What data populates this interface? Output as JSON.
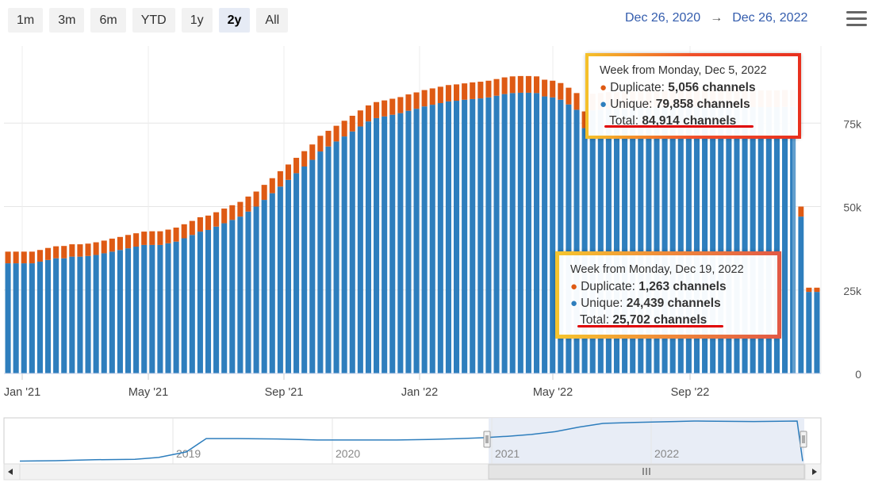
{
  "range_selector": {
    "buttons": [
      "1m",
      "3m",
      "6m",
      "YTD",
      "1y",
      "2y",
      "All"
    ],
    "selected": "2y"
  },
  "date_range": {
    "from": "Dec 26, 2020",
    "arrow": "→",
    "to": "Dec 26, 2022"
  },
  "menu_icon": "hamburger-menu-icon",
  "colors": {
    "unique": "#2e7ebd",
    "duplicate": "#de5a14",
    "navigator_line": "#2e7ebd",
    "navigator_fill": "#e6ebf5"
  },
  "tooltips": [
    {
      "title": "Week from Monday, Dec 5, 2022",
      "duplicate_label": "Duplicate: ",
      "duplicate_value": "5,056 channels",
      "unique_label": "Unique: ",
      "unique_value": "79,858 channels",
      "total_label": "Total: ",
      "total_value": "84,914 channels"
    },
    {
      "title": "Week from Monday, Dec 19, 2022",
      "duplicate_label": "Duplicate: ",
      "duplicate_value": "1,263 channels",
      "unique_label": "Unique: ",
      "unique_value": "24,439 channels",
      "total_label": "Total: ",
      "total_value": "25,702 channels"
    }
  ],
  "chart_data": {
    "type": "bar",
    "stacked": true,
    "x_start": "2020-12-28",
    "x_interval": "week",
    "x_ticks": [
      "Jan '21",
      "May '21",
      "Sep '21",
      "Jan '22",
      "May '22",
      "Sep '22"
    ],
    "y_ticks": [
      "0",
      "25k",
      "50k",
      "75k"
    ],
    "ylim": [
      0,
      100000
    ],
    "y_axis_position": "right",
    "series": [
      {
        "name": "Unique",
        "values": [
          33000,
          33000,
          33000,
          33000,
          33500,
          34000,
          34500,
          34500,
          35000,
          35000,
          35200,
          35500,
          36000,
          36500,
          37000,
          37500,
          38000,
          38500,
          38500,
          38500,
          39000,
          39500,
          40500,
          41500,
          42500,
          43000,
          44000,
          45000,
          46000,
          47000,
          48500,
          50000,
          52000,
          54000,
          56000,
          58000,
          60000,
          62000,
          64000,
          66500,
          68000,
          69500,
          71000,
          72500,
          74000,
          75500,
          76500,
          77000,
          77500,
          78000,
          78700,
          79300,
          80000,
          80500,
          81000,
          81500,
          81700,
          82000,
          82200,
          82400,
          82700,
          83200,
          83700,
          84000,
          84100,
          84100,
          84000,
          83000,
          82700,
          82000,
          80600,
          79000,
          73500,
          78800,
          79000,
          79300,
          79300,
          79400,
          79500,
          79600,
          79600,
          79700,
          79700,
          79800,
          79800,
          79800,
          79800,
          79800,
          79800,
          79800,
          79800,
          79800,
          79800,
          79800,
          79800,
          79800,
          79800,
          79858,
          79858,
          47000,
          24439,
          24439
        ],
        "note": ""
      },
      {
        "name": "Duplicate",
        "values": [
          3500,
          3500,
          3500,
          3500,
          3500,
          3600,
          3600,
          3700,
          3700,
          3700,
          3700,
          3800,
          3800,
          3900,
          3900,
          4000,
          4000,
          4000,
          4100,
          4100,
          4100,
          4200,
          4200,
          4200,
          4300,
          4300,
          4300,
          4400,
          4400,
          4400,
          4500,
          4500,
          4500,
          4500,
          4600,
          4600,
          4600,
          4600,
          4600,
          4700,
          4700,
          4700,
          4700,
          4700,
          4800,
          4800,
          4800,
          4800,
          4800,
          4800,
          4900,
          4900,
          4900,
          4900,
          4900,
          4900,
          4900,
          4900,
          5000,
          5000,
          5000,
          5000,
          5000,
          5000,
          5000,
          5000,
          5000,
          5000,
          5000,
          5000,
          5000,
          5000,
          5000,
          5000,
          5000,
          5000,
          5000,
          5000,
          5000,
          5000,
          5000,
          5000,
          5000,
          5000,
          5000,
          5000,
          5000,
          5000,
          5000,
          5000,
          5000,
          5000,
          5000,
          5000,
          5000,
          5000,
          5000,
          5056,
          5056,
          3000,
          1263,
          1263
        ],
        "note": ""
      }
    ],
    "navigator": {
      "labels": [
        "2019",
        "2020",
        "2021",
        "2022"
      ],
      "line_values": [
        0.06,
        0.07,
        0.09,
        0.1,
        0.14,
        0.26,
        0.55,
        0.55,
        0.54,
        0.52,
        0.52,
        0.52,
        0.53,
        0.55,
        0.57,
        0.6,
        0.64,
        0.7,
        0.8,
        0.88,
        0.9,
        0.92,
        0.93,
        0.93,
        0.92,
        0.93,
        0.06
      ]
    },
    "legend": "none"
  }
}
